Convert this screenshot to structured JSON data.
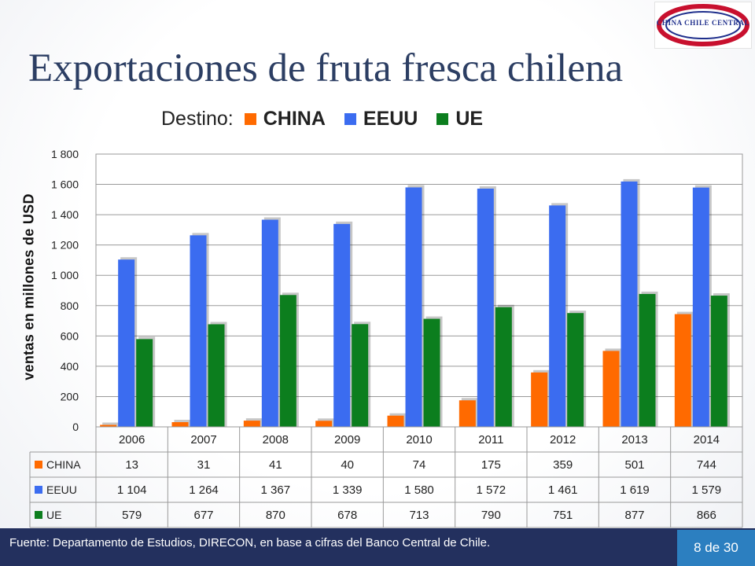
{
  "title": "Exportaciones de fruta fresca chilena",
  "logo_text": "CHINA CHILE CENTRAL",
  "legend": {
    "prefix": "Destino:",
    "items": [
      {
        "label": "CHINA",
        "color": "#ff6a00"
      },
      {
        "label": "EEUU",
        "color": "#3b6cf0"
      },
      {
        "label": "UE",
        "color": "#0c7e1e"
      }
    ]
  },
  "chart_data": {
    "type": "bar",
    "categories": [
      "2006",
      "2007",
      "2008",
      "2009",
      "2010",
      "2011",
      "2012",
      "2013",
      "2014"
    ],
    "series": [
      {
        "name": "CHINA",
        "color": "#ff6a00",
        "values": [
          13,
          31,
          41,
          40,
          74,
          175,
          359,
          501,
          744
        ],
        "labels": [
          "13",
          "31",
          "41",
          "40",
          "74",
          "175",
          "359",
          "501",
          "744"
        ]
      },
      {
        "name": "EEUU",
        "color": "#3b6cf0",
        "values": [
          1104,
          1264,
          1367,
          1339,
          1580,
          1572,
          1461,
          1619,
          1579
        ],
        "labels": [
          "1 104",
          "1 264",
          "1 367",
          "1 339",
          "1 580",
          "1 572",
          "1 461",
          "1 619",
          "1 579"
        ]
      },
      {
        "name": "UE",
        "color": "#0c7e1e",
        "values": [
          579,
          677,
          870,
          678,
          713,
          790,
          751,
          877,
          866
        ],
        "labels": [
          "579",
          "677",
          "870",
          "678",
          "713",
          "790",
          "751",
          "877",
          "866"
        ]
      }
    ],
    "ylabel": "ventas en millones de USD",
    "ylim": [
      0,
      1800
    ],
    "yticks": [
      0,
      200,
      400,
      600,
      800,
      1000,
      1200,
      1400,
      1600,
      1800
    ],
    "ytick_labels": [
      "0",
      "200",
      "400",
      "600",
      "800",
      "1 000",
      "1 200",
      "1 400",
      "1 600",
      "1 800"
    ],
    "grid": true,
    "data_table": true
  },
  "footer": {
    "source": "Fuente: Departamento de Estudios, DIRECON, en base a cifras del Banco  Central de Chile.",
    "page": "8 de 30"
  }
}
